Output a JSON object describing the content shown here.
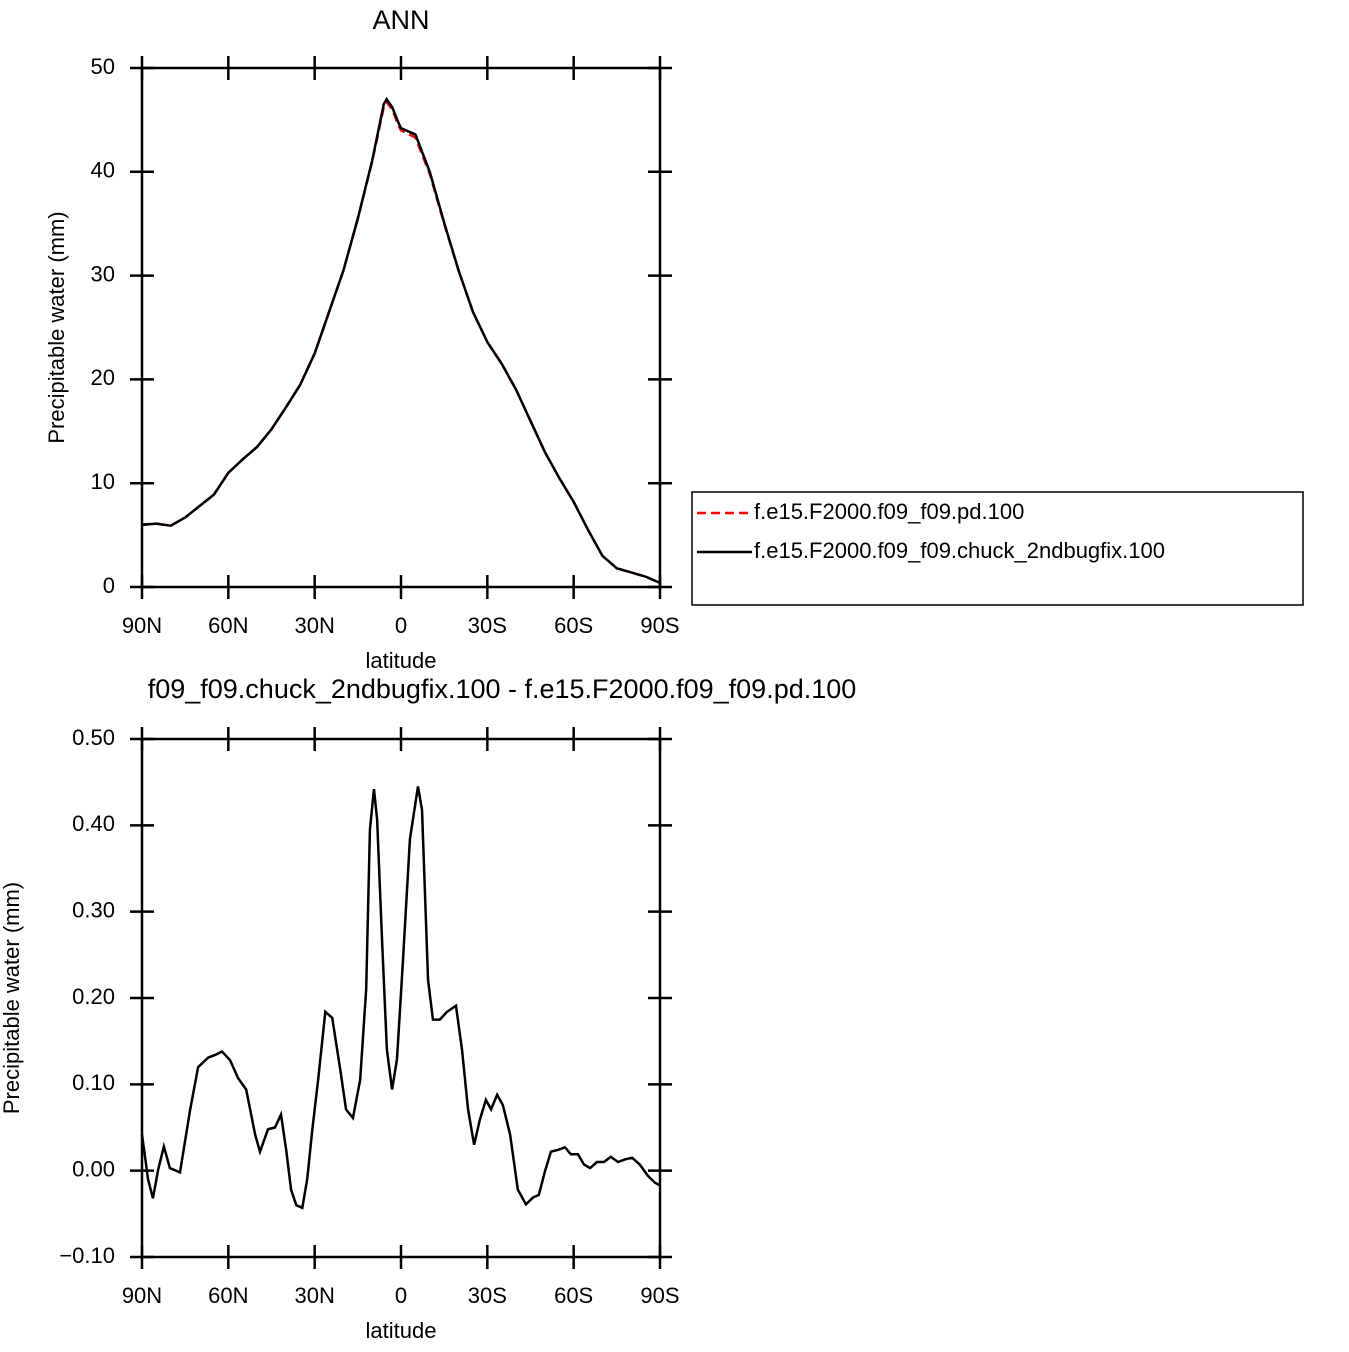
{
  "chart_data": [
    {
      "type": "line",
      "title": "ANN",
      "xlabel": "latitude",
      "ylabel": "Precipitable water (mm)",
      "xlim": [
        90,
        -90
      ],
      "ylim": [
        0,
        50
      ],
      "xticks": [
        {
          "value": 90,
          "label": "90N"
        },
        {
          "value": 60,
          "label": "60N"
        },
        {
          "value": 30,
          "label": "30N"
        },
        0,
        {
          "value": -30,
          "label": "30S"
        },
        {
          "value": -60,
          "label": "60S"
        },
        {
          "value": -90,
          "label": "90S"
        }
      ],
      "yticks": [
        0,
        10,
        20,
        30,
        40,
        50
      ],
      "legend": "outside-right",
      "x": [
        90,
        85,
        80,
        75,
        70,
        65,
        60,
        55,
        50,
        45,
        40,
        35,
        30,
        25,
        20,
        15,
        10,
        6,
        5,
        3,
        1,
        0,
        -5,
        -10,
        -15,
        -20,
        -25,
        -30,
        -35,
        -40,
        -45,
        -50,
        -55,
        -60,
        -65,
        -70,
        -75,
        -80,
        -85,
        -90
      ],
      "series": [
        {
          "name": "f.e15.F2000.f09_f09.pd.100",
          "color": "#ff0000",
          "dashed": true,
          "values": [
            6.0,
            6.1,
            5.9,
            6.7,
            7.8,
            8.9,
            11.0,
            12.3,
            13.5,
            15.2,
            17.3,
            19.5,
            22.5,
            26.5,
            30.5,
            35.5,
            41.0,
            46.2,
            46.7,
            46.0,
            44.5,
            44.0,
            43.3,
            39.8,
            35.0,
            30.5,
            26.5,
            23.6,
            21.5,
            19.0,
            16.0,
            13.0,
            10.5,
            8.2,
            5.5,
            3.0,
            1.8,
            1.4,
            1.0,
            0.4
          ]
        },
        {
          "name": "f.e15.F2000.f09_f09.chuck_2ndbugfix.100",
          "color": "#000000",
          "dashed": false,
          "values": [
            6.0,
            6.1,
            5.9,
            6.7,
            7.8,
            8.9,
            11.0,
            12.3,
            13.5,
            15.2,
            17.3,
            19.5,
            22.5,
            26.5,
            30.5,
            35.5,
            41.1,
            46.5,
            47.0,
            46.2,
            44.8,
            44.2,
            43.6,
            40.0,
            35.1,
            30.5,
            26.5,
            23.6,
            21.5,
            19.0,
            16.0,
            13.0,
            10.5,
            8.2,
            5.5,
            3.0,
            1.8,
            1.4,
            1.0,
            0.4
          ]
        }
      ]
    },
    {
      "type": "line",
      "title": "f09_f09.chuck_2ndbugfix.100 - f.e15.F2000.f09_f09.pd.100",
      "xlabel": "latitude",
      "ylabel": "Precipitable water (mm)",
      "xlim": [
        90,
        -90
      ],
      "ylim": [
        -0.1,
        0.5
      ],
      "xticks": [
        {
          "value": 90,
          "label": "90N"
        },
        {
          "value": 60,
          "label": "60N"
        },
        {
          "value": 30,
          "label": "30N"
        },
        0,
        {
          "value": -30,
          "label": "30S"
        },
        {
          "value": -60,
          "label": "60S"
        },
        {
          "value": -90,
          "label": "90S"
        }
      ],
      "yticks": [
        {
          "value": 0.5,
          "label": "0.50"
        },
        {
          "value": 0.4,
          "label": "0.40"
        },
        {
          "value": 0.3,
          "label": "0.30"
        },
        {
          "value": 0.2,
          "label": "0.20"
        },
        {
          "value": 0.1,
          "label": "0.10"
        },
        {
          "value": 0,
          "label": "0.00"
        },
        {
          "value": -0.1,
          "label": "−0.10"
        }
      ],
      "x": [
        90,
        87.9,
        86.2,
        84.4,
        82.4,
        80.3,
        76.8,
        73.3,
        70.5,
        67.0,
        64.6,
        62.2,
        59.4,
        56.6,
        53.8,
        50.7,
        49.0,
        46.2,
        43.8,
        41.7,
        39.9,
        38.2,
        36.4,
        34.3,
        32.6,
        30.8,
        28.8,
        26.3,
        23.9,
        21.1,
        19.1,
        16.7,
        14.2,
        12.1,
        10.8,
        9.4,
        8.3,
        6.6,
        4.9,
        3.1,
        1.4,
        -0.7,
        -3.1,
        -5.9,
        -7.3,
        -9.4,
        -11.1,
        -13.5,
        -16.0,
        -19.1,
        -21.2,
        -23.3,
        -25.4,
        -27.4,
        -29.5,
        -31.3,
        -33.4,
        -35.4,
        -37.9,
        -40.6,
        -43.4,
        -45.9,
        -47.9,
        -50.0,
        -52.1,
        -54.5,
        -57.0,
        -59.0,
        -61.5,
        -63.6,
        -65.7,
        -68.1,
        -70.5,
        -72.9,
        -75.4,
        -77.8,
        -80.3,
        -83.0,
        -85.8,
        -88.3,
        -90
      ],
      "series": [
        {
          "color": "#000000",
          "values": [
            0.042,
            -0.01,
            -0.032,
            0.001,
            0.028,
            0.003,
            -0.002,
            0.07,
            0.12,
            0.131,
            0.134,
            0.138,
            0.128,
            0.107,
            0.094,
            0.042,
            0.022,
            0.048,
            0.05,
            0.065,
            0.024,
            -0.022,
            -0.04,
            -0.043,
            -0.01,
            0.048,
            0.105,
            0.184,
            0.177,
            0.117,
            0.071,
            0.061,
            0.105,
            0.21,
            0.395,
            0.442,
            0.407,
            0.268,
            0.14,
            0.094,
            0.129,
            0.244,
            0.384,
            0.445,
            0.418,
            0.221,
            0.175,
            0.175,
            0.184,
            0.191,
            0.14,
            0.071,
            0.03,
            0.059,
            0.082,
            0.071,
            0.088,
            0.076,
            0.042,
            -0.022,
            -0.039,
            -0.031,
            -0.028,
            -0.001,
            0.022,
            0.024,
            0.027,
            0.019,
            0.019,
            0.007,
            0.003,
            0.01,
            0.01,
            0.016,
            0.01,
            0.013,
            0.015,
            0.007,
            -0.006,
            -0.014,
            -0.017
          ]
        }
      ]
    }
  ]
}
